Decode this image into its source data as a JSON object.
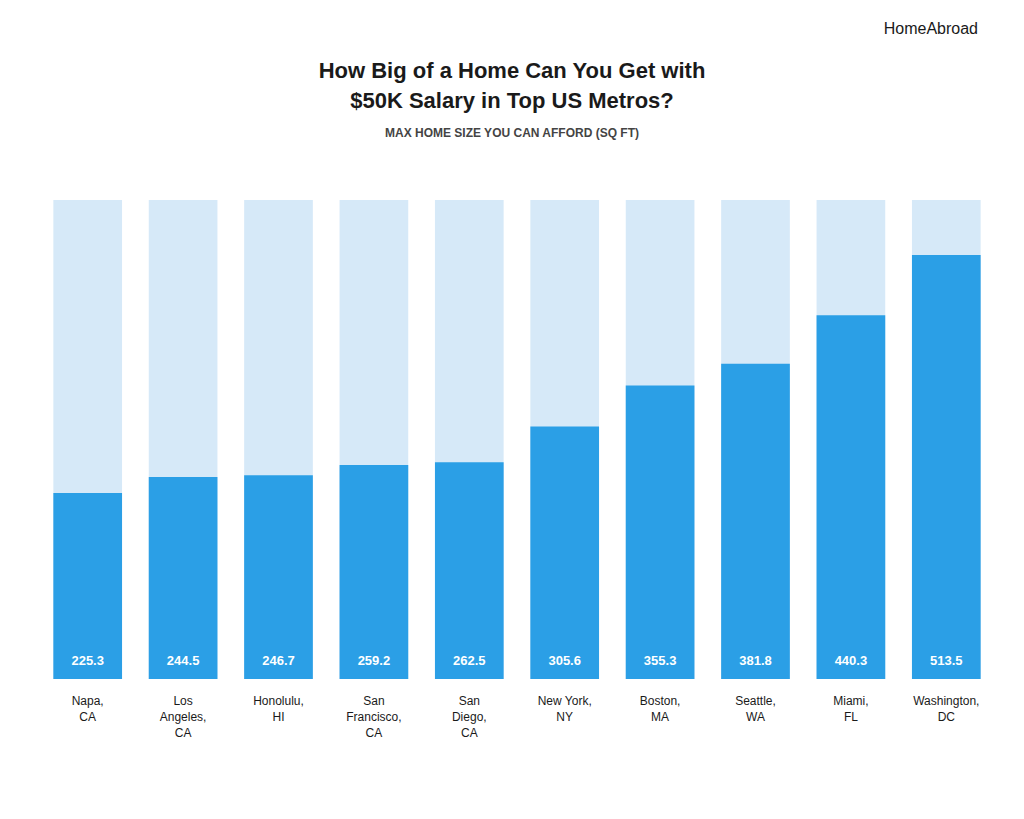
{
  "chart_data": {
    "type": "bar",
    "title": "How Big of a Home Can You Get with\n$50K Salary in Top US Metros?",
    "subtitle": "MAX HOME SIZE YOU CAN AFFORD (SQ FT)",
    "annotations": [
      "HomeAbroad"
    ],
    "categories": [
      "Napa,\nCA",
      "Los\nAngeles,\nCA",
      "Honolulu,\nHI",
      "San\nFrancisco,\nCA",
      "San\nDiego,\nCA",
      "New York,\nNY",
      "Boston,\nMA",
      "Seattle,\nWA",
      "Miami,\nFL",
      "Washington,\nDC"
    ],
    "values": [
      225.3,
      244.5,
      246.7,
      259.2,
      262.5,
      305.6,
      355.3,
      381.8,
      440.3,
      513.5
    ],
    "color": "#2B9FE6",
    "ylim": [
      0,
      580
    ],
    "data_labels": true,
    "tick_labels": "x",
    "grid": false
  }
}
